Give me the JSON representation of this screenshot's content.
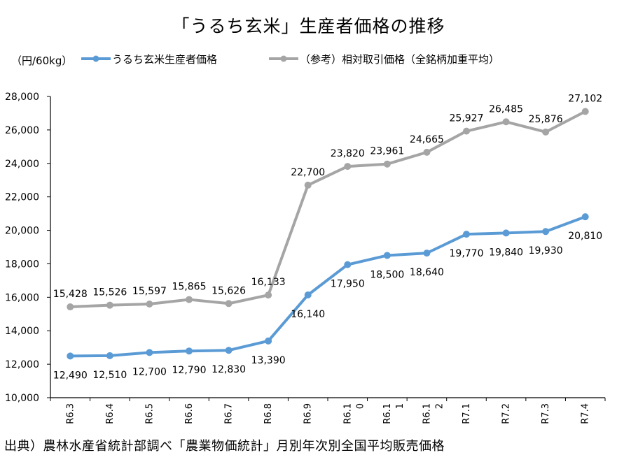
{
  "chart_data": {
    "type": "line",
    "title": "「うるち玄米」生産者価格の推移",
    "unit_label": "（円/60kg）",
    "categories": [
      "R6.3",
      "R6.4",
      "R6.5",
      "R6.6",
      "R6.7",
      "R6.8",
      "R6.9",
      "R6.1\n0",
      "R6.1\n1",
      "R6.1\n2",
      "R7.1",
      "R7.2",
      "R7.3",
      "R7.4"
    ],
    "ylim": [
      10000,
      28000
    ],
    "yticks": [
      10000,
      12000,
      14000,
      16000,
      18000,
      20000,
      22000,
      24000,
      26000,
      28000
    ],
    "ytick_labels": [
      "10,000",
      "12,000",
      "14,000",
      "16,000",
      "18,000",
      "20,000",
      "22,000",
      "24,000",
      "26,000",
      "28,000"
    ],
    "grid": false,
    "legend_position": "top",
    "series": [
      {
        "name": "うるち玄米生産者価格",
        "color": "#5b9bd5",
        "values": [
          12490,
          12510,
          12700,
          12790,
          12830,
          13390,
          16140,
          17950,
          18500,
          18640,
          19770,
          19840,
          19930,
          20810
        ],
        "labels": [
          "12,490",
          "12,510",
          "12,700",
          "12,790",
          "12,830",
          "13,390",
          "16,140",
          "17,950",
          "18,500",
          "18,640",
          "19,770",
          "19,840",
          "19,930",
          "20,810"
        ]
      },
      {
        "name": "（参考）相対取引価格（全銘柄加重平均）",
        "color": "#a5a5a5",
        "values": [
          15428,
          15526,
          15597,
          15865,
          15626,
          16133,
          22700,
          23820,
          23961,
          24665,
          25927,
          26485,
          25876,
          27102
        ],
        "labels": [
          "15,428",
          "15,526",
          "15,597",
          "15,865",
          "15,626",
          "16,133",
          "22,700",
          "23,820",
          "23,961",
          "24,665",
          "25,927",
          "26,485",
          "25,876",
          "27,102"
        ]
      }
    ],
    "source": "出典）農林水産省統計部調べ「農業物価統計」月別年次別全国平均販売価格"
  }
}
